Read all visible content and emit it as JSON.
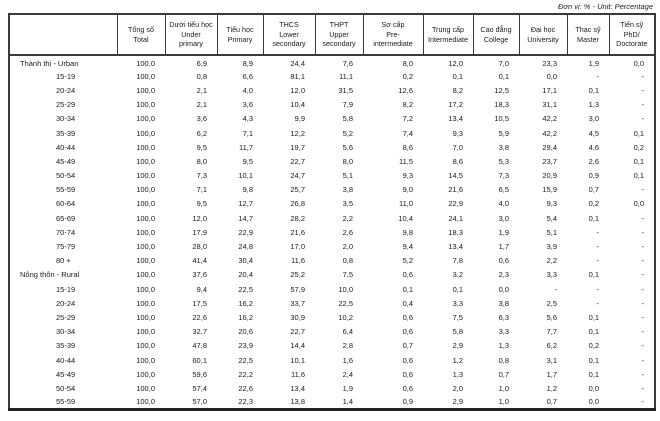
{
  "unit_label": "Đơn vị: % - Unit: Percentage",
  "colors": {
    "text": "#1a1a1a",
    "border": "#3a3a3a",
    "background": "#ffffff"
  },
  "table": {
    "columns": [
      {
        "id": "total",
        "title": "Tổng số\nTotal"
      },
      {
        "id": "under-primary",
        "title": "Dưới tiểu học\nUnder\nprimary"
      },
      {
        "id": "primary",
        "title": "Tiểu học\nPrimary"
      },
      {
        "id": "lower-secondary",
        "title": "THCS\nLower\nsecondary"
      },
      {
        "id": "upper-secondary",
        "title": "THPT\nUpper\nsecondary"
      },
      {
        "id": "pre-intermediate",
        "title": "Sơ cấp\nPre-\nintermediate"
      },
      {
        "id": "intermediate",
        "title": "Trung cấp\nIntermediate"
      },
      {
        "id": "college",
        "title": "Cao đẳng\nCollege"
      },
      {
        "id": "university",
        "title": "Đại học\nUniversity"
      },
      {
        "id": "master",
        "title": "Thạc sỹ\nMaster"
      },
      {
        "id": "doctorate",
        "title": "Tiến sỹ\nPhD/\nDoctorate"
      }
    ],
    "rows": [
      {
        "label": "Thành thị - Urban",
        "group": true,
        "values": [
          "100,0",
          "6,9",
          "8,9",
          "24,4",
          "7,6",
          "8,0",
          "12,0",
          "7,0",
          "23,3",
          "1,9",
          "0,0"
        ]
      },
      {
        "label": "15-19",
        "group": false,
        "values": [
          "100,0",
          "0,8",
          "6,6",
          "81,1",
          "11,1",
          "0,2",
          "0,1",
          "0,1",
          "0,0",
          "-",
          "-"
        ]
      },
      {
        "label": "20-24",
        "group": false,
        "values": [
          "100,0",
          "2,1",
          "4,0",
          "12,0",
          "31,5",
          "12,6",
          "8,2",
          "12,5",
          "17,1",
          "0,1",
          "-"
        ]
      },
      {
        "label": "25-29",
        "group": false,
        "values": [
          "100,0",
          "2,1",
          "3,6",
          "10,4",
          "7,9",
          "8,2",
          "17,2",
          "18,3",
          "31,1",
          "1,3",
          "-"
        ]
      },
      {
        "label": "30-34",
        "group": false,
        "values": [
          "100,0",
          "3,6",
          "4,3",
          "9,9",
          "5,8",
          "7,2",
          "13,4",
          "10,5",
          "42,2",
          "3,0",
          "-"
        ]
      },
      {
        "label": "35-39",
        "group": false,
        "values": [
          "100,0",
          "6,2",
          "7,1",
          "12,2",
          "5,2",
          "7,4",
          "9,3",
          "5,9",
          "42,2",
          "4,5",
          "0,1"
        ]
      },
      {
        "label": "40-44",
        "group": false,
        "values": [
          "100,0",
          "9,5",
          "11,7",
          "19,7",
          "5,6",
          "8,6",
          "7,0",
          "3,8",
          "29,4",
          "4,6",
          "0,2"
        ]
      },
      {
        "label": "45-49",
        "group": false,
        "values": [
          "100,0",
          "8,0",
          "9,5",
          "22,7",
          "8,0",
          "11,5",
          "8,6",
          "5,3",
          "23,7",
          "2,6",
          "0,1"
        ]
      },
      {
        "label": "50-54",
        "group": false,
        "values": [
          "100,0",
          "7,3",
          "10,1",
          "24,7",
          "5,1",
          "9,3",
          "14,5",
          "7,3",
          "20,9",
          "0,9",
          "0,1"
        ]
      },
      {
        "label": "55-59",
        "group": false,
        "values": [
          "100,0",
          "7,1",
          "9,8",
          "25,7",
          "3,8",
          "9,0",
          "21,6",
          "6,5",
          "15,9",
          "0,7",
          "-"
        ]
      },
      {
        "label": "60-64",
        "group": false,
        "values": [
          "100,0",
          "9,5",
          "12,7",
          "26,8",
          "3,5",
          "11,0",
          "22,9",
          "4,0",
          "9,3",
          "0,2",
          "0,0"
        ]
      },
      {
        "label": "65-69",
        "group": false,
        "values": [
          "100,0",
          "12,0",
          "14,7",
          "28,2",
          "2,2",
          "10,4",
          "24,1",
          "3,0",
          "5,4",
          "0,1",
          "-"
        ]
      },
      {
        "label": "70-74",
        "group": false,
        "values": [
          "100,0",
          "17,9",
          "22,9",
          "21,6",
          "2,6",
          "9,8",
          "18,3",
          "1,9",
          "5,1",
          "-",
          "-"
        ]
      },
      {
        "label": "75-79",
        "group": false,
        "values": [
          "100,0",
          "28,0",
          "24,8",
          "17,0",
          "2,0",
          "9,4",
          "13,4",
          "1,7",
          "3,9",
          "-",
          "-"
        ]
      },
      {
        "label": "80 +",
        "group": false,
        "values": [
          "100,0",
          "41,4",
          "30,4",
          "11,6",
          "0,8",
          "5,2",
          "7,8",
          "0,6",
          "2,2",
          "-",
          "-"
        ]
      },
      {
        "label": "Nông thôn - Rural",
        "group": true,
        "values": [
          "100,0",
          "37,6",
          "20,4",
          "25,2",
          "7,5",
          "0,6",
          "3,2",
          "2,3",
          "3,3",
          "0,1",
          "-"
        ]
      },
      {
        "label": "15-19",
        "group": false,
        "values": [
          "100,0",
          "9,4",
          "22,5",
          "57,9",
          "10,0",
          "0,1",
          "0,1",
          "0,0",
          "-",
          "-",
          "-"
        ]
      },
      {
        "label": "20-24",
        "group": false,
        "values": [
          "100,0",
          "17,5",
          "16,2",
          "33,7",
          "22,5",
          "0,4",
          "3,3",
          "3,8",
          "2,5",
          "-",
          "-"
        ]
      },
      {
        "label": "25-29",
        "group": false,
        "values": [
          "100,0",
          "22,6",
          "16,2",
          "30,9",
          "10,2",
          "0,6",
          "7,5",
          "6,3",
          "5,6",
          "0,1",
          "-"
        ]
      },
      {
        "label": "30-34",
        "group": false,
        "values": [
          "100,0",
          "32,7",
          "20,6",
          "22,7",
          "6,4",
          "0,6",
          "5,8",
          "3,3",
          "7,7",
          "0,1",
          "-"
        ]
      },
      {
        "label": "35-39",
        "group": false,
        "values": [
          "100,0",
          "47,8",
          "23,9",
          "14,4",
          "2,8",
          "0,7",
          "2,9",
          "1,3",
          "6,2",
          "0,2",
          "-"
        ]
      },
      {
        "label": "40-44",
        "group": false,
        "values": [
          "100,0",
          "60,1",
          "22,5",
          "10,1",
          "1,6",
          "0,6",
          "1,2",
          "0,8",
          "3,1",
          "0,1",
          "-"
        ]
      },
      {
        "label": "45-49",
        "group": false,
        "values": [
          "100,0",
          "59,6",
          "22,2",
          "11,6",
          "2,4",
          "0,6",
          "1,3",
          "0,7",
          "1,7",
          "0,1",
          "-"
        ]
      },
      {
        "label": "50-54",
        "group": false,
        "values": [
          "100,0",
          "57,4",
          "22,6",
          "13,4",
          "1,9",
          "0,6",
          "2,0",
          "1,0",
          "1,2",
          "0,0",
          "-"
        ]
      },
      {
        "label": "55-59",
        "group": false,
        "values": [
          "100,0",
          "57,0",
          "22,3",
          "13,8",
          "1,4",
          "0,9",
          "2,9",
          "1,0",
          "0,7",
          "0,0",
          "-"
        ]
      }
    ]
  }
}
